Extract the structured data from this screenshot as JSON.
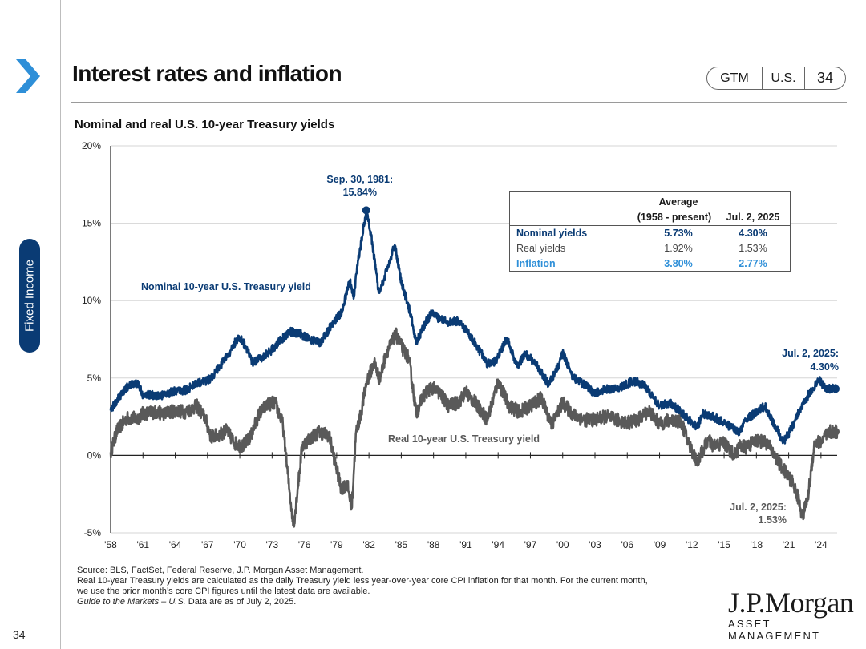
{
  "header": {
    "title": "Interest rates and inflation"
  },
  "badge": {
    "gtm": "GTM",
    "region": "U.S.",
    "page": "34"
  },
  "side_tab": "Fixed Income",
  "page_number": "34",
  "colors": {
    "nominal": "#0a3b74",
    "real": "#595959",
    "inflation": "#2e8fd8",
    "brand": "#0a3b74"
  },
  "summary_table": {
    "header_avg": "Average",
    "header_period": "(1958 - present)",
    "header_date": "Jul. 2, 2025",
    "rows": [
      {
        "label": "Nominal yields",
        "avg": "5.73%",
        "current": "4.30%"
      },
      {
        "label": "Real yields",
        "avg": "1.92%",
        "current": "1.53%"
      },
      {
        "label": "Inflation",
        "avg": "3.80%",
        "current": "2.77%"
      }
    ]
  },
  "source": {
    "line1": "Source: BLS, FactSet, Federal Reserve, J.P. Morgan Asset Management.",
    "line2": "Real 10-year Treasury yields are calculated as the daily Treasury yield less year-over-year core CPI inflation for that month. For the current month,",
    "line3": "we use the prior month’s core CPI figures until the latest data are available.",
    "line4_italic": "Guide to the Markets – U.S.",
    "line4_rest": " Data are as of July 2, 2025."
  },
  "logo": {
    "name": "J.P.Morgan",
    "sub": "ASSET MANAGEMENT"
  },
  "chart_data": {
    "type": "line",
    "title": "Nominal and real U.S. 10-year Treasury yields",
    "y_ticks": [
      "20%",
      "15%",
      "10%",
      "5%",
      "0%",
      "-5%"
    ],
    "y_tick_values": [
      20,
      15,
      10,
      5,
      0,
      -5
    ],
    "ylim": [
      -5,
      20
    ],
    "xlim": [
      1958,
      2025.5
    ],
    "x_ticks": [
      "'58",
      "'61",
      "'64",
      "'67",
      "'70",
      "'73",
      "'76",
      "'79",
      "'82",
      "'85",
      "'88",
      "'91",
      "'94",
      "'97",
      "'00",
      "'03",
      "'06",
      "'09",
      "'12",
      "'15",
      "'18",
      "'21",
      "'24"
    ],
    "x_tick_values": [
      1958,
      1961,
      1964,
      1967,
      1970,
      1973,
      1976,
      1979,
      1982,
      1985,
      1988,
      1991,
      1994,
      1997,
      2000,
      2003,
      2006,
      2009,
      2012,
      2015,
      2018,
      2021,
      2024
    ],
    "series": [
      {
        "name": "Nominal 10-year U.S. Treasury yield",
        "color": "#0a3b74",
        "x": [
          1958,
          1958.6,
          1959.5,
          1960.5,
          1961,
          1962,
          1963,
          1964,
          1965,
          1966,
          1966.8,
          1967.3,
          1968,
          1969,
          1969.9,
          1970.5,
          1971.2,
          1972,
          1972.8,
          1973.6,
          1974.6,
          1975.5,
          1976.5,
          1977.5,
          1978.5,
          1979.5,
          1980.2,
          1980.6,
          1981,
          1981.75,
          1982.3,
          1982.9,
          1983.4,
          1984.4,
          1985,
          1985.8,
          1986.4,
          1987.2,
          1987.8,
          1988.6,
          1989.5,
          1990.3,
          1991,
          1992,
          1993,
          1993.8,
          1994.8,
          1995.8,
          1996.5,
          1997.5,
          1998.7,
          1999.5,
          2000,
          2001,
          2002,
          2003,
          2004,
          2005,
          2006.5,
          2007.5,
          2008.5,
          2009,
          2010,
          2011,
          2012.5,
          2013,
          2014,
          2015,
          2016.5,
          2017,
          2018.8,
          2019.5,
          2020.5,
          2021,
          2022,
          2023,
          2023.8,
          2024.5,
          2025.5
        ],
        "y": [
          2.9,
          3.6,
          4.4,
          4.7,
          3.9,
          3.9,
          3.9,
          4.2,
          4.2,
          4.7,
          4.8,
          5.0,
          5.6,
          6.6,
          7.7,
          7.1,
          6.0,
          6.3,
          6.7,
          7.3,
          8.0,
          7.9,
          7.5,
          7.3,
          8.4,
          9.3,
          11.3,
          10.3,
          12.6,
          15.84,
          13.8,
          10.5,
          11.4,
          13.6,
          11.2,
          9.3,
          7.3,
          8.5,
          9.2,
          8.8,
          8.6,
          8.7,
          8.1,
          7.1,
          5.9,
          6.1,
          7.6,
          5.7,
          6.6,
          5.9,
          4.6,
          5.6,
          6.6,
          5.0,
          4.6,
          4.0,
          4.3,
          4.3,
          4.8,
          4.6,
          3.7,
          3.2,
          3.4,
          2.8,
          1.8,
          2.7,
          2.5,
          2.1,
          1.5,
          2.3,
          3.2,
          2.2,
          0.9,
          1.4,
          2.9,
          4.1,
          4.9,
          4.3,
          4.3
        ]
      },
      {
        "name": "Real 10-year U.S. Treasury yield",
        "color": "#595959",
        "x": [
          1958,
          1958.6,
          1959.5,
          1960.5,
          1961,
          1962,
          1963,
          1964,
          1965,
          1966,
          1966.8,
          1967.3,
          1968,
          1968.8,
          1969.5,
          1970.3,
          1971,
          1971.8,
          1972.6,
          1973.3,
          1974,
          1974.6,
          1975,
          1975.8,
          1976.5,
          1977.4,
          1978.3,
          1978.9,
          1979.4,
          1980,
          1980.4,
          1980.8,
          1981.2,
          1981.8,
          1982.5,
          1983,
          1983.6,
          1984.5,
          1985.2,
          1985.7,
          1986.4,
          1987,
          1987.8,
          1988.6,
          1989.4,
          1990.3,
          1991,
          1992,
          1993,
          1994,
          1995,
          1996,
          1997,
          1998,
          1999,
          2000,
          2001,
          2002,
          2003,
          2004,
          2005,
          2006,
          2007,
          2008,
          2009,
          2010,
          2011,
          2011.8,
          2012.5,
          2013.5,
          2014,
          2015,
          2016,
          2016.5,
          2017,
          2018,
          2019,
          2020.2,
          2020.8,
          2021.4,
          2021.9,
          2022.3,
          2022.8,
          2023.4,
          2024,
          2024.8,
          2025.5
        ],
        "y": [
          0.2,
          1.6,
          2.4,
          2.4,
          2.7,
          2.8,
          2.7,
          2.9,
          2.8,
          3.2,
          2.4,
          1.2,
          1.3,
          1.6,
          0.8,
          0.6,
          1.2,
          2.7,
          3.3,
          3.4,
          2.0,
          -2.2,
          -4.6,
          0.6,
          1.1,
          1.5,
          1.3,
          -0.6,
          -2.1,
          -1.9,
          -3.4,
          1.5,
          2.5,
          4.8,
          6.0,
          4.9,
          6.6,
          7.8,
          6.8,
          6.3,
          2.7,
          3.8,
          4.4,
          4.0,
          3.2,
          3.4,
          4.1,
          3.3,
          2.3,
          4.8,
          3.2,
          2.8,
          3.2,
          3.7,
          2.0,
          3.4,
          2.6,
          2.3,
          2.3,
          2.5,
          2.3,
          2.1,
          2.3,
          2.9,
          2.0,
          2.3,
          2.2,
          0.6,
          -0.4,
          1.0,
          0.6,
          0.8,
          0.0,
          0.7,
          0.5,
          1.0,
          0.8,
          -0.6,
          -1.2,
          -1.8,
          -2.8,
          -4.0,
          -2.6,
          0.8,
          0.9,
          1.5,
          1.53
        ]
      }
    ],
    "annotations": {
      "peak": {
        "line1": "Sep. 30, 1981:",
        "line2": "15.84%",
        "x": 1981.75,
        "y": 15.84
      },
      "nominal_label": "Nominal  10-year U.S. Treasury yield",
      "real_label": "Real 10-year U.S. Treasury yield",
      "nominal_end": {
        "line1": "Jul. 2, 2025:",
        "line2": "4.30%",
        "x": 2025.5,
        "y": 4.3
      },
      "real_end": {
        "line1": "Jul. 2, 2025:",
        "line2": "1.53%",
        "x": 2025.5,
        "y": 1.53
      }
    }
  }
}
